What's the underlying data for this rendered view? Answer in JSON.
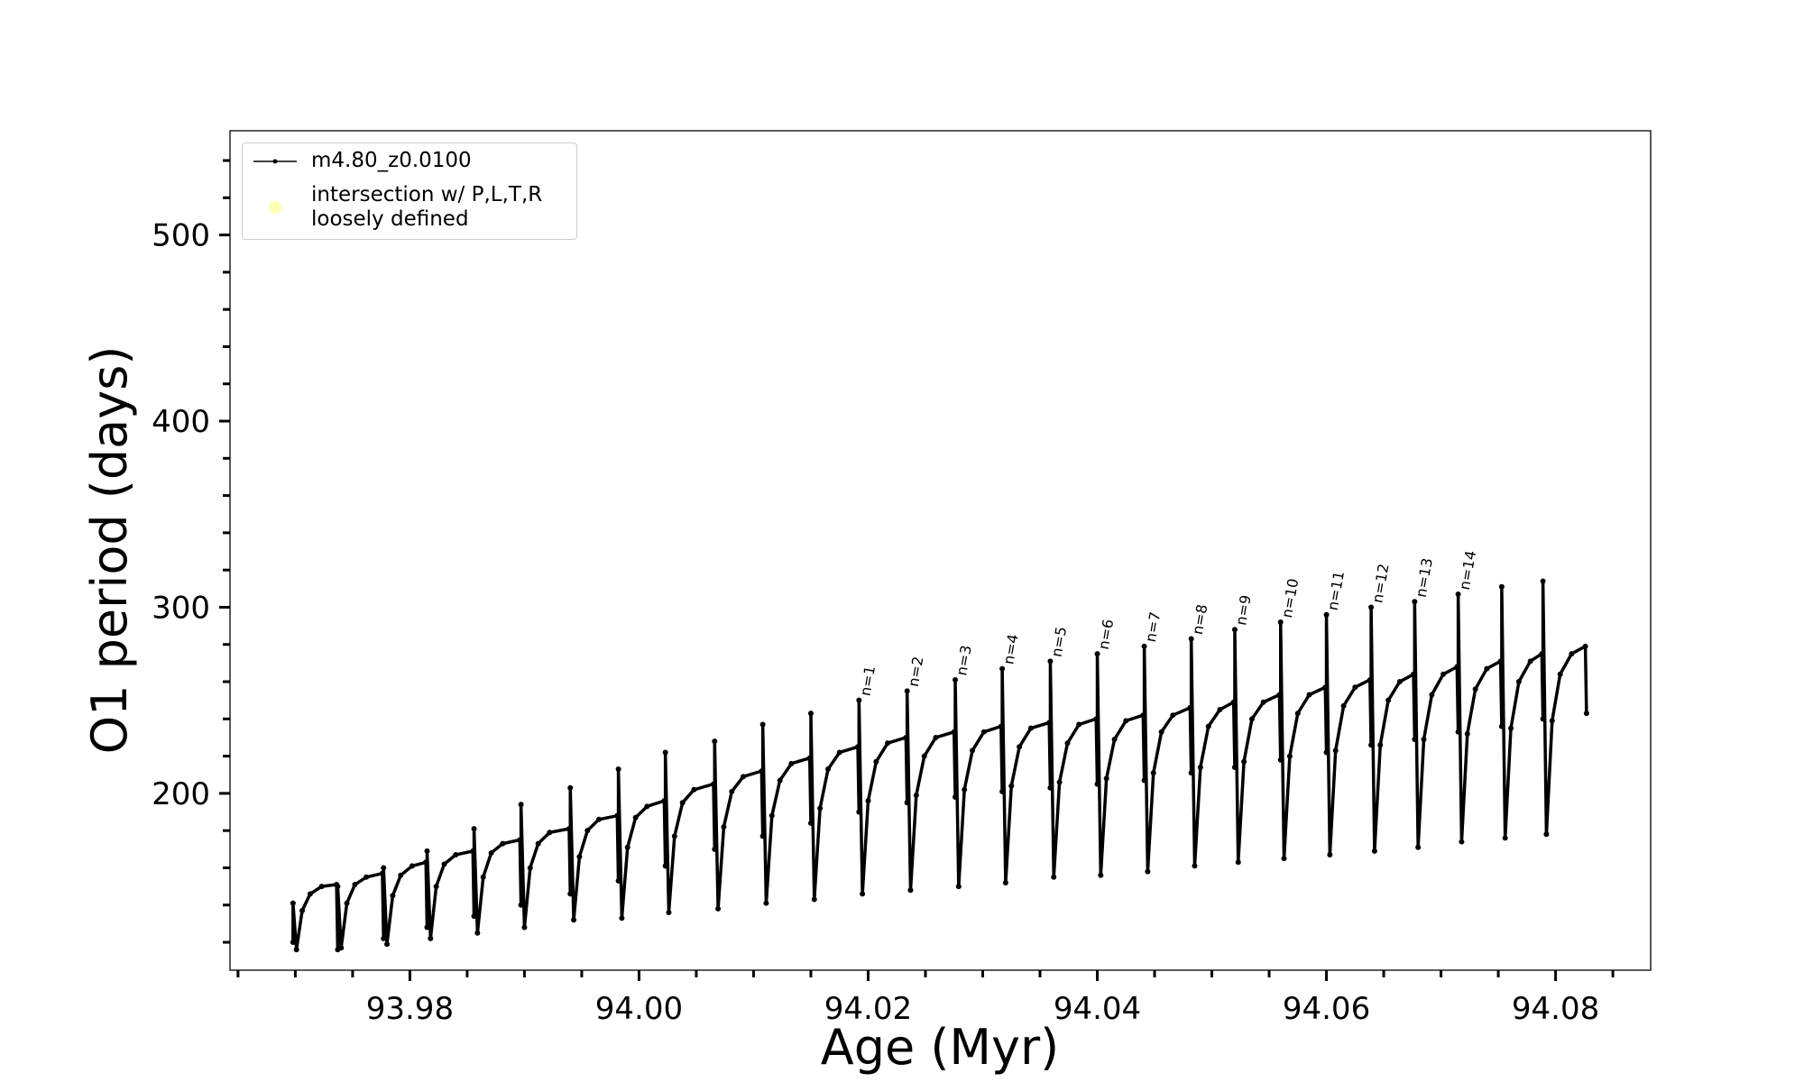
{
  "chart_data": {
    "type": "line",
    "xlabel": "Age (Myr)",
    "ylabel": "O1 period (days)",
    "xlim": [
      93.9643,
      94.0883
    ],
    "ylim": [
      105,
      556
    ],
    "xticks": [
      93.98,
      {
        "value": 94,
        "label": "94.00"
      },
      94.02,
      94.04,
      94.06,
      94.08
    ],
    "xminorticks": [
      93.965,
      93.97,
      93.975,
      93.985,
      93.99,
      93.995,
      94.005,
      94.01,
      94.015,
      94.025,
      94.03,
      94.035,
      94.045,
      94.05,
      94.055,
      94.065,
      94.07,
      94.075,
      94.085
    ],
    "yticks": [
      200,
      300,
      400,
      500
    ],
    "yminorticks": [
      120,
      140,
      160,
      180,
      220,
      240,
      260,
      280,
      320,
      340,
      360,
      380,
      420,
      440,
      460,
      480,
      520,
      540
    ],
    "legend": "upper left",
    "series": [
      {
        "name": "m4.80_z0.0100",
        "color": "#000000",
        "x": [
          93.9698,
          93.9698,
          93.9701,
          93.9706,
          93.9713,
          93.9723,
          93.9736,
          93.9737,
          93.9737,
          93.974,
          93.9745,
          93.9752,
          93.9762,
          93.9776,
          93.9777,
          93.9777,
          93.978,
          93.9785,
          93.9792,
          93.9802,
          93.9814,
          93.9815,
          93.9815,
          93.9818,
          93.9823,
          93.983,
          93.984,
          93.9855,
          93.9856,
          93.9856,
          93.9859,
          93.9864,
          93.9871,
          93.9881,
          93.9896,
          93.9897,
          93.9897,
          93.99,
          93.9905,
          93.9912,
          93.9922,
          93.9939,
          93.994,
          93.994,
          93.9943,
          93.9948,
          93.9955,
          93.9965,
          93.9981,
          93.9982,
          93.9982,
          93.9985,
          93.999,
          93.9997,
          94.0007,
          94.0022,
          94.0023,
          94.0023,
          94.0026,
          94.0031,
          94.0038,
          94.0048,
          94.0065,
          94.0066,
          94.0066,
          94.0069,
          94.0074,
          94.0081,
          94.0091,
          94.0107,
          94.0108,
          94.0108,
          94.0111,
          94.0116,
          94.0123,
          94.0133,
          94.0149,
          94.015,
          94.015,
          94.0153,
          94.0158,
          94.0165,
          94.0175,
          94.0191,
          94.0192,
          94.0192,
          94.0195,
          94.02,
          94.0207,
          94.0217,
          94.0233,
          94.0234,
          94.0234,
          94.0237,
          94.0242,
          94.0249,
          94.0259,
          94.0275,
          94.0276,
          94.0276,
          94.0279,
          94.0284,
          94.0291,
          94.0301,
          94.0316,
          94.0317,
          94.0317,
          94.032,
          94.0325,
          94.0332,
          94.0342,
          94.0358,
          94.0359,
          94.0359,
          94.0362,
          94.0367,
          94.0374,
          94.0384,
          94.0399,
          94.04,
          94.04,
          94.0403,
          94.0408,
          94.0415,
          94.0425,
          94.044,
          94.0441,
          94.0441,
          94.0444,
          94.0449,
          94.0456,
          94.0466,
          94.0481,
          94.0482,
          94.0482,
          94.0485,
          94.049,
          94.0497,
          94.0507,
          94.0519,
          94.052,
          94.052,
          94.0523,
          94.0528,
          94.0535,
          94.0545,
          94.0559,
          94.056,
          94.056,
          94.0563,
          94.0568,
          94.0575,
          94.0585,
          94.0599,
          94.06,
          94.06,
          94.0603,
          94.0608,
          94.0615,
          94.0625,
          94.0638,
          94.0639,
          94.0639,
          94.0642,
          94.0647,
          94.0654,
          94.0664,
          94.0676,
          94.0677,
          94.0677,
          94.068,
          94.0685,
          94.0692,
          94.0702,
          94.0714,
          94.0715,
          94.0715,
          94.0718,
          94.0723,
          94.073,
          94.074,
          94.0752,
          94.0753,
          94.0753,
          94.0756,
          94.0761,
          94.0768,
          94.0778,
          94.0788,
          94.0789,
          94.0789,
          94.0792,
          94.0797,
          94.0804,
          94.0814,
          94.0826,
          94.0827
        ],
        "values": [
          120,
          141,
          116,
          137,
          146,
          150,
          151,
          116,
          150,
          117,
          141,
          151,
          155,
          157,
          122,
          160,
          119,
          145,
          156,
          161,
          163,
          128,
          169,
          122,
          150,
          162,
          167,
          169,
          134,
          181,
          125,
          155,
          168,
          173,
          175,
          140,
          194,
          128,
          160,
          173,
          179,
          181,
          146,
          203,
          132,
          166,
          180,
          186,
          188,
          153,
          213,
          133,
          171,
          187,
          193,
          196,
          161,
          222,
          136,
          177,
          195,
          202,
          205,
          170,
          228,
          138,
          182,
          201,
          209,
          212,
          177,
          237,
          141,
          188,
          207,
          216,
          219,
          184,
          243,
          143,
          192,
          213,
          222,
          225,
          190,
          250,
          146,
          196,
          217,
          227,
          230,
          195,
          255,
          148,
          199,
          220,
          230,
          233,
          198,
          261,
          150,
          202,
          223,
          233,
          236,
          201,
          267,
          152,
          204,
          225,
          235,
          238,
          203,
          271,
          155,
          206,
          227,
          237,
          240,
          205,
          275,
          156,
          208,
          229,
          239,
          242,
          207,
          279,
          158,
          211,
          233,
          242,
          246,
          211,
          283,
          161,
          214,
          236,
          245,
          249,
          214,
          288,
          163,
          217,
          240,
          249,
          253,
          218,
          292,
          165,
          220,
          243,
          253,
          257,
          222,
          296,
          167,
          223,
          247,
          257,
          261,
          226,
          300,
          169,
          226,
          250,
          260,
          264,
          229,
          303,
          171,
          229,
          253,
          264,
          268,
          233,
          307,
          174,
          232,
          256,
          267,
          271,
          236,
          311,
          176,
          235,
          260,
          271,
          275,
          240,
          314,
          178,
          239,
          264,
          275,
          279,
          243
        ]
      },
      {
        "name": "intersection w/ P,L,T,R\nloosely defined",
        "color": "#ffffb3",
        "x": [],
        "values": []
      }
    ],
    "annotations": [
      {
        "text": "n=1",
        "x": 94.0192,
        "y": 250
      },
      {
        "text": "n=2",
        "x": 94.0234,
        "y": 255
      },
      {
        "text": "n=3",
        "x": 94.0276,
        "y": 261
      },
      {
        "text": "n=4",
        "x": 94.0317,
        "y": 267
      },
      {
        "text": "n=5",
        "x": 94.0359,
        "y": 271
      },
      {
        "text": "n=6",
        "x": 94.04,
        "y": 275
      },
      {
        "text": "n=7",
        "x": 94.0441,
        "y": 279
      },
      {
        "text": "n=8",
        "x": 94.0482,
        "y": 283
      },
      {
        "text": "n=9",
        "x": 94.052,
        "y": 288
      },
      {
        "text": "n=10",
        "x": 94.056,
        "y": 292
      },
      {
        "text": "n=11",
        "x": 94.06,
        "y": 296
      },
      {
        "text": "n=12",
        "x": 94.0639,
        "y": 300
      },
      {
        "text": "n=13",
        "x": 94.0677,
        "y": 303
      },
      {
        "text": "n=14",
        "x": 94.0715,
        "y": 307
      }
    ]
  }
}
